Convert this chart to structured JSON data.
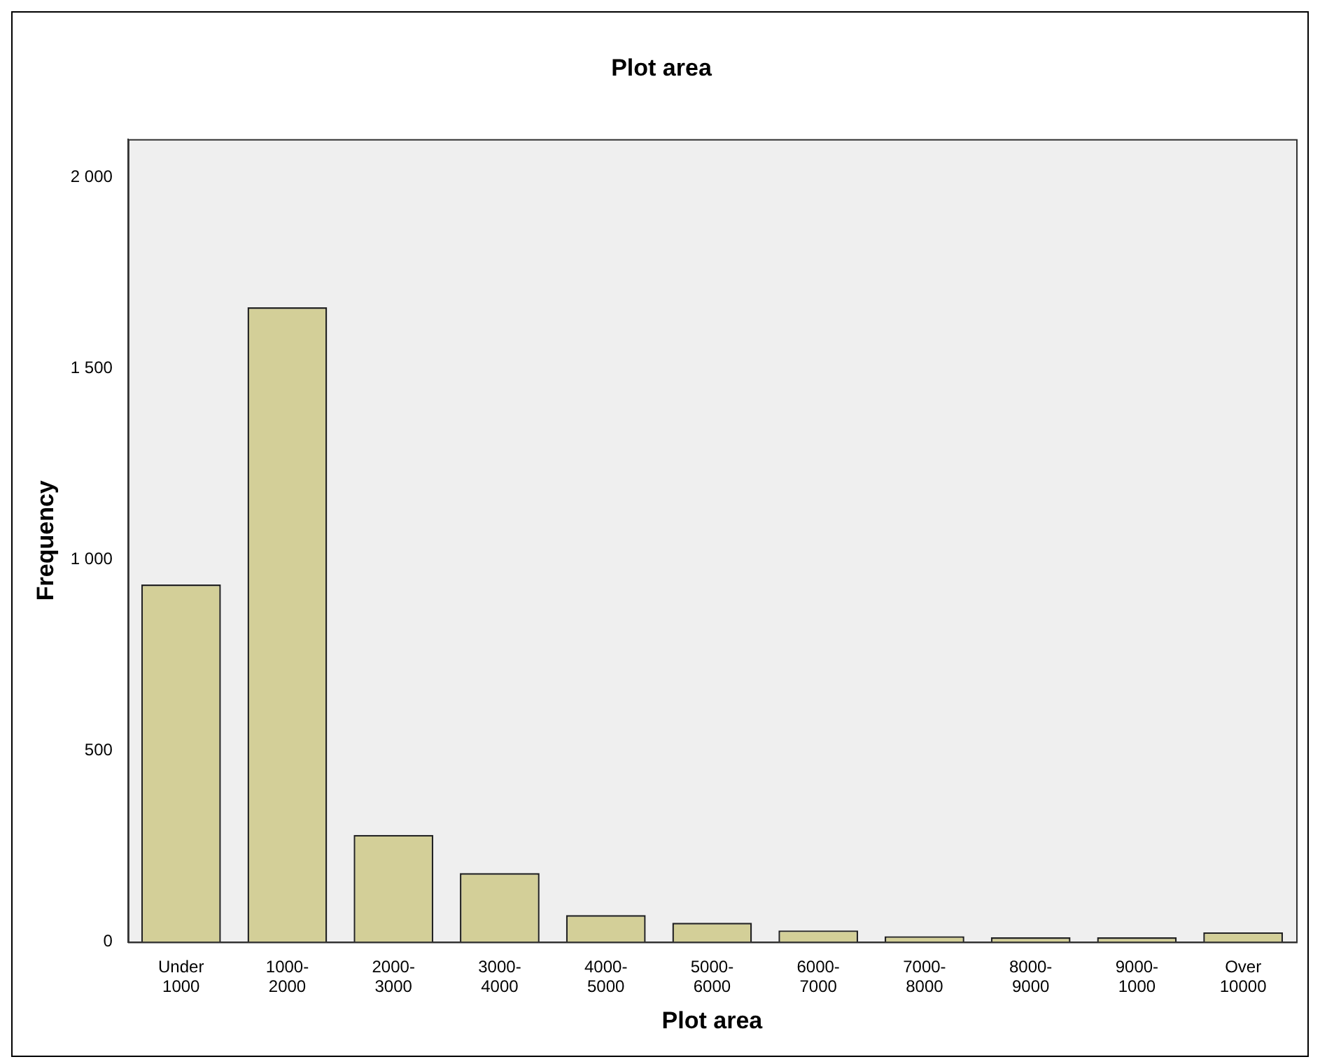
{
  "chart_data": {
    "type": "bar",
    "title": "Plot area",
    "xlabel": "Plot area",
    "ylabel": "Frequency",
    "categories": [
      "Under\n1000",
      "1000-\n2000",
      "2000-\n3000",
      "3000-\n4000",
      "4000-\n5000",
      "5000-\n6000",
      "6000-\n7000",
      "7000-\n8000",
      "8000-\n9000",
      "9000-\n1000",
      "Over\n10000"
    ],
    "values": [
      935,
      1660,
      280,
      180,
      70,
      50,
      30,
      15,
      12,
      12,
      25
    ],
    "color": "#d3cf98",
    "ylim": [
      0,
      2100
    ],
    "yticks": [
      0,
      500,
      {
        "value": 1000,
        "label": "1 000"
      },
      {
        "value": 1500,
        "label": "1 500"
      },
      {
        "value": 2000,
        "label": "2 000"
      }
    ],
    "grid": false,
    "legend": false
  }
}
